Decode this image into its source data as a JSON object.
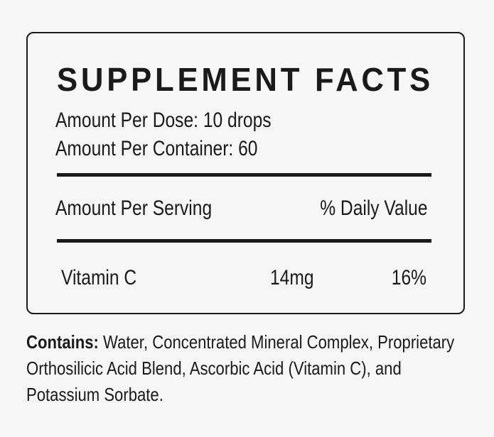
{
  "title": "SUPPLEMENT FACTS",
  "dose": "Amount Per Dose: 10 drops",
  "container": "Amount Per Container: 60",
  "header": {
    "serving": "Amount Per Serving",
    "dv": "% Daily Value"
  },
  "rows": [
    {
      "name": "Vitamin C",
      "amount": "14mg",
      "dv": "16%"
    }
  ],
  "contains": {
    "label": "Contains:",
    "text": " Water, Concentrated Mineral Complex, Proprietary Orthosilicic Acid Blend, Ascorbic Acid (Vitamin C), and Potassium Sorbate."
  }
}
